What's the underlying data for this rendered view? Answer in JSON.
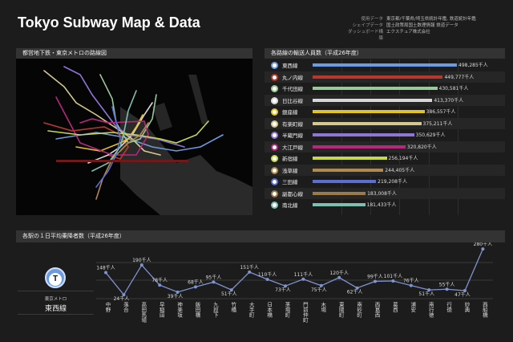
{
  "header": {
    "title": "Tokyo Subway Map & Data",
    "credits": [
      {
        "key": "使用データ",
        "value": "東京都/千葉県/埼玉県統計年鑑, 鉄道統計年鑑"
      },
      {
        "key": "シェイプデータ",
        "value": "国土政策局国土数理情報 鉄道データ"
      },
      {
        "key": "ダッシュボード構築",
        "value": "エクスチュア株式会社"
      }
    ]
  },
  "map_panel": {
    "title": "都営地下鉄・東京メトロの路線図"
  },
  "ridership_panel": {
    "title": "各路線の輸送人員数（平成26年度）",
    "chart_data": {
      "type": "bar",
      "orientation": "horizontal",
      "unit": "千人",
      "categories": [
        "東西線",
        "丸ノ内線",
        "千代田線",
        "日比谷線",
        "銀座線",
        "有楽町線",
        "半蔵門線",
        "大江戸線",
        "新宿線",
        "浅草線",
        "三田線",
        "副都心線",
        "南北線"
      ],
      "values": [
        498285,
        449777,
        430581,
        413370,
        386557,
        375211,
        350629,
        320820,
        256194,
        244405,
        219208,
        183008,
        181433
      ],
      "labels": [
        "498,285千人",
        "449,777千人",
        "430,581千人",
        "413,370千人",
        "386,557千人",
        "375,211千人",
        "350,629千人",
        "320,820千人",
        "256,194千人",
        "244,405千人",
        "219,208千人",
        "183,008千人",
        "181,433千人"
      ],
      "colors": [
        "#6d9be0",
        "#b8382e",
        "#9bc89b",
        "#d8d8d8",
        "#e6c21f",
        "#d3c98f",
        "#8f76d6",
        "#b6287c",
        "#c6d84a",
        "#b08a50",
        "#5b6fd0",
        "#9c7a4a",
        "#7fbfb0"
      ]
    }
  },
  "station_panel": {
    "title": "各駅の１日平均乗降者数（平成26年度）",
    "selected_line": {
      "icon_letter": "T",
      "operator": "東京メトロ",
      "name": "東西線",
      "color": "#6d9be0"
    },
    "chart_data": {
      "type": "line",
      "unit": "千人",
      "categories": [
        "中野",
        "落合",
        "高田馬場",
        "早稲田",
        "神楽坂",
        "飯田橋",
        "九段下",
        "竹橋",
        "大手町",
        "日本橋",
        "茅場町",
        "門前仲町",
        "木場",
        "東陽町",
        "南砂町",
        "西葛西",
        "葛西",
        "浦安",
        "南行徳",
        "行徳",
        "妙典",
        "西船橋"
      ],
      "values": [
        148,
        24,
        190,
        78,
        39,
        68,
        95,
        51,
        151,
        110,
        73,
        111,
        75,
        120,
        62,
        99,
        101,
        76,
        51,
        55,
        47,
        280
      ],
      "labels": [
        "148千人",
        "24千人",
        "190千人",
        "78千人",
        "39千人",
        "68千人",
        "95千人",
        "51千人",
        "151千人",
        "110千人",
        "73千人",
        "111千人",
        "75千人",
        "120千人",
        "62千人",
        "99千人",
        "101千人",
        "76千人",
        "51千人",
        "55千人",
        "47千人",
        "280千人"
      ],
      "color": "#7f93d0"
    }
  }
}
